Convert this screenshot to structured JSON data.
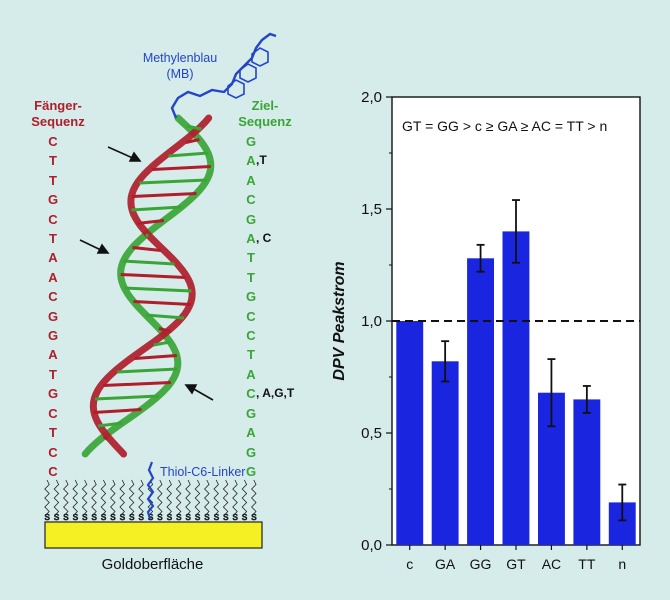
{
  "diagram": {
    "label_methylene_blue_line1": "Methylenblau",
    "label_methylene_blue_line2": "(MB)",
    "label_capture_line1": "Fänger-",
    "label_capture_line2": "Sequenz",
    "label_target_line1": "Ziel-",
    "label_target_line2": "Sequenz",
    "label_linker": "Thiol-C6-Linker",
    "label_gold": "Goldoberfläche",
    "capture_sequence": [
      "C",
      "T",
      "T",
      "G",
      "C",
      "T",
      "A",
      "A",
      "C",
      "G",
      "G",
      "A",
      "T",
      "G",
      "C",
      "T",
      "C",
      "C"
    ],
    "target_sequence": [
      "G",
      "A",
      "A",
      "C",
      "G",
      "A",
      "T",
      "T",
      "G",
      "C",
      "C",
      "T",
      "A",
      "C",
      "G",
      "A",
      "G",
      "G"
    ],
    "mismatch_marks": [
      {
        "row": 1,
        "text": ",T"
      },
      {
        "row": 5,
        "text": ", C"
      },
      {
        "row": 13,
        "text": ", A,G,T"
      }
    ],
    "colors": {
      "capture": "#b01d2b",
      "target": "#3aa536",
      "linker": "#2445c8",
      "gold": "#f4f023"
    }
  },
  "chart_data": {
    "type": "bar",
    "categories": [
      "c",
      "GA",
      "GG",
      "GT",
      "AC",
      "TT",
      "n"
    ],
    "values": [
      1.0,
      0.82,
      1.28,
      1.4,
      0.68,
      0.65,
      0.19
    ],
    "errors": [
      0.0,
      0.09,
      0.06,
      0.14,
      0.15,
      0.06,
      0.08
    ],
    "ylim": [
      0.0,
      2.0
    ],
    "yticks": [
      0.0,
      0.5,
      1.0,
      1.5,
      2.0
    ],
    "ytick_labels": [
      "0,0",
      "0,5",
      "1,0",
      "1,5",
      "2,0"
    ],
    "ylabel": "DPV Peakstrom",
    "reference_line": 1.0,
    "annotation": "GT = GG > c ≥ GA ≥ AC = TT > n",
    "bar_color": "#1a25e0"
  }
}
